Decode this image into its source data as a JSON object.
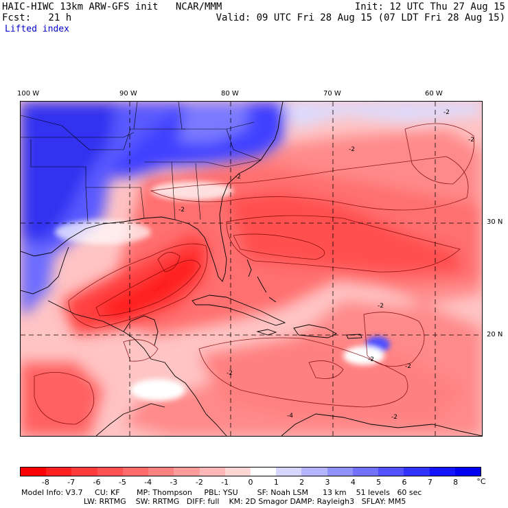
{
  "header": {
    "left_line1": "HAIC-HIWC 13km ARW-GFS init   NCAR/MMM",
    "left_line2": "Fcst:   21 h",
    "right_line1": "Init: 12 UTC Thu 27 Aug 15",
    "right_line2": "Valid: 09 UTC Fri 28 Aug 15 (07 LDT Fri 28 Aug 15)",
    "field_name": "Lifted index"
  },
  "axes": {
    "longitude_labels": [
      "100 W",
      "90 W",
      "80 W",
      "70 W",
      "60 W"
    ],
    "latitude_labels": [
      "30 N",
      "20 N"
    ]
  },
  "colorbar": {
    "tick_labels": [
      "-8",
      "-7",
      "-6",
      "-5",
      "-4",
      "-3",
      "-2",
      "-1",
      "0",
      "1",
      "2",
      "3",
      "4",
      "5",
      "6",
      "7",
      "8"
    ],
    "unit": "°C",
    "colors": [
      "#ff0000",
      "#ff2020",
      "#ff3c3c",
      "#ff5252",
      "#ff6a6a",
      "#ff8282",
      "#ff9c9c",
      "#ffb8b8",
      "#ffd6d6",
      "#ffffff",
      "#d6d6ff",
      "#b4b4ff",
      "#9292ff",
      "#7272ff",
      "#5252ff",
      "#3232ff",
      "#1414ff",
      "#0000ee"
    ]
  },
  "contour_labels": [
    "-2",
    "-2",
    "-2",
    "-2",
    "-2",
    "-2",
    "-2",
    "-2",
    "-2",
    "-4",
    "-2"
  ],
  "model_info": {
    "line1": "Model Info: V3.7     CU: KF       MP: Thompson     PBL: YSU        SF: Noah LSM      13 km    51 levels   60 sec",
    "line2": "                          LW: RRTMG    SW: RRTMG   DIFF: full    KM: 2D Smagor DAMP: Rayleigh3   SFLAY: MM5"
  }
}
